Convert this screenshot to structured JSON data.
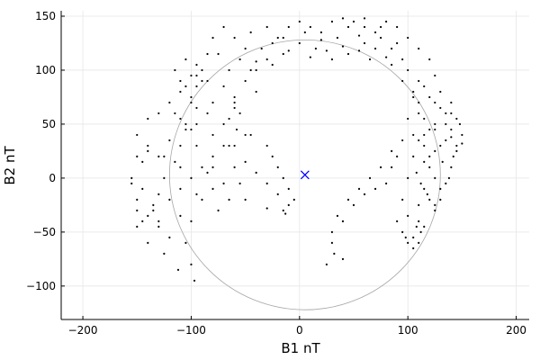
{
  "chart_data": {
    "type": "scatter",
    "xlabel": "B1 nT",
    "ylabel": "B2 nT",
    "xlim": [
      -220,
      212
    ],
    "ylim": [
      -131,
      155
    ],
    "grid": true,
    "legend": "none",
    "x_ticks": [
      -200,
      -100,
      0,
      100,
      200
    ],
    "y_ticks": [
      -100,
      -50,
      0,
      50,
      100,
      150
    ],
    "x_tick_labels": [
      "−200",
      "−100",
      "0",
      "100",
      "200"
    ],
    "y_tick_labels": [
      "−100",
      "−50",
      "0",
      "50",
      "100",
      "150"
    ],
    "colors": {
      "trace": "#000000",
      "circle": "#a6a6a6",
      "marker": "#0000ff",
      "grid": "#e6e6e6"
    },
    "reference_circle": {
      "center": [
        5,
        3
      ],
      "radius": 125
    },
    "marker": {
      "symbol": "x",
      "x": 5,
      "y": 3
    },
    "series": [
      {
        "values": [
          [
            -130,
            -40
          ],
          [
            -150,
            -20
          ],
          [
            -155,
            0
          ],
          [
            -145,
            15
          ],
          [
            -140,
            30
          ],
          [
            -150,
            20
          ],
          [
            -145,
            -10
          ],
          [
            -135,
            -30
          ],
          [
            -155,
            -5
          ],
          [
            -140,
            25
          ],
          [
            -120,
            35
          ],
          [
            -105,
            50
          ],
          [
            -110,
            30
          ],
          [
            -125,
            20
          ],
          [
            -115,
            60
          ],
          [
            -100,
            75
          ],
          [
            -95,
            65
          ],
          [
            -110,
            80
          ],
          [
            -120,
            70
          ],
          [
            -130,
            60
          ],
          [
            -140,
            55
          ],
          [
            -150,
            40
          ],
          [
            -130,
            20
          ],
          [
            -110,
            10
          ],
          [
            -100,
            0
          ],
          [
            -110,
            -10
          ],
          [
            -120,
            -20
          ],
          [
            -130,
            -15
          ],
          [
            -150,
            -30
          ],
          [
            -145,
            -40
          ],
          [
            -135,
            -25
          ],
          [
            -125,
            0
          ],
          [
            -115,
            15
          ],
          [
            -105,
            45
          ],
          [
            -95,
            85
          ],
          [
            -90,
            100
          ],
          [
            -100,
            95
          ],
          [
            -110,
            90
          ],
          [
            -115,
            100
          ],
          [
            -105,
            110
          ],
          [
            -95,
            105
          ],
          [
            -85,
            115
          ],
          [
            -80,
            130
          ],
          [
            -70,
            140
          ],
          [
            -60,
            130
          ],
          [
            -75,
            115
          ],
          [
            -90,
            90
          ],
          [
            -100,
            70
          ],
          [
            -95,
            50
          ],
          [
            -85,
            60
          ],
          [
            -80,
            40
          ],
          [
            -80,
            20
          ],
          [
            -85,
            5
          ],
          [
            -80,
            -10
          ],
          [
            -90,
            -20
          ],
          [
            -100,
            -40
          ],
          [
            -105,
            -60
          ],
          [
            -100,
            -80
          ],
          [
            -97,
            -95
          ],
          [
            -112,
            -85
          ],
          [
            -125,
            -70
          ],
          [
            -140,
            -60
          ],
          [
            -150,
            -45
          ],
          [
            -140,
            -35
          ],
          [
            -130,
            -45
          ],
          [
            -120,
            -55
          ],
          [
            -110,
            -35
          ],
          [
            -95,
            -15
          ],
          [
            -90,
            10
          ],
          [
            -95,
            30
          ],
          [
            -100,
            45
          ],
          [
            -110,
            55
          ],
          [
            -105,
            85
          ],
          [
            -95,
            95
          ],
          [
            -85,
            90
          ],
          [
            -80,
            70
          ],
          [
            -70,
            50
          ],
          [
            -65,
            30
          ],
          [
            -60,
            10
          ],
          [
            -55,
            -5
          ],
          [
            -75,
            -30
          ],
          [
            -65,
            -20
          ],
          [
            -50,
            40
          ],
          [
            -40,
            80
          ],
          [
            -30,
            110
          ],
          [
            -20,
            130
          ],
          [
            -10,
            140
          ],
          [
            0,
            145
          ],
          [
            10,
            140
          ],
          [
            20,
            135
          ],
          [
            30,
            145
          ],
          [
            40,
            148
          ],
          [
            50,
            145
          ],
          [
            60,
            140
          ],
          [
            70,
            135
          ],
          [
            80,
            145
          ],
          [
            90,
            140
          ],
          [
            100,
            130
          ],
          [
            110,
            120
          ],
          [
            120,
            110
          ],
          [
            125,
            95
          ],
          [
            130,
            80
          ],
          [
            140,
            70
          ],
          [
            145,
            55
          ],
          [
            150,
            40
          ],
          [
            145,
            25
          ],
          [
            140,
            10
          ],
          [
            135,
            -5
          ],
          [
            130,
            -20
          ],
          [
            125,
            -30
          ],
          [
            115,
            -45
          ],
          [
            105,
            -55
          ],
          [
            110,
            -40
          ],
          [
            120,
            -20
          ],
          [
            125,
            0
          ],
          [
            120,
            20
          ],
          [
            115,
            40
          ],
          [
            110,
            60
          ],
          [
            105,
            75
          ],
          [
            115,
            85
          ],
          [
            125,
            70
          ],
          [
            135,
            60
          ],
          [
            140,
            45
          ],
          [
            130,
            30
          ],
          [
            120,
            45
          ],
          [
            115,
            55
          ],
          [
            125,
            50
          ],
          [
            135,
            35
          ],
          [
            145,
            30
          ],
          [
            148,
            50
          ],
          [
            140,
            60
          ],
          [
            130,
            65
          ],
          [
            120,
            75
          ],
          [
            110,
            90
          ],
          [
            100,
            100
          ],
          [
            95,
            110
          ],
          [
            85,
            120
          ],
          [
            75,
            130
          ],
          [
            60,
            125
          ],
          [
            45,
            115
          ],
          [
            30,
            110
          ],
          [
            15,
            120
          ],
          [
            0,
            125
          ],
          [
            -15,
            115
          ],
          [
            -25,
            105
          ],
          [
            -40,
            100
          ],
          [
            -50,
            120
          ],
          [
            -45,
            135
          ],
          [
            -30,
            140
          ],
          [
            -15,
            130
          ],
          [
            5,
            135
          ],
          [
            20,
            128
          ],
          [
            35,
            130
          ],
          [
            55,
            132
          ],
          [
            70,
            120
          ],
          [
            85,
            105
          ],
          [
            95,
            90
          ],
          [
            105,
            80
          ],
          [
            110,
            70
          ],
          [
            100,
            55
          ],
          [
            105,
            40
          ],
          [
            115,
            30
          ],
          [
            120,
            10
          ],
          [
            115,
            -10
          ],
          [
            110,
            -25
          ],
          [
            100,
            -35
          ],
          [
            95,
            -20
          ],
          [
            100,
            0
          ],
          [
            105,
            20
          ],
          [
            110,
            35
          ],
          [
            125,
            45
          ],
          [
            135,
            50
          ],
          [
            140,
            38
          ],
          [
            150,
            32
          ],
          [
            142,
            20
          ],
          [
            132,
            15
          ],
          [
            125,
            25
          ],
          [
            115,
            15
          ],
          [
            108,
            5
          ],
          [
            112,
            -5
          ],
          [
            118,
            -15
          ],
          [
            125,
            -25
          ],
          [
            130,
            -10
          ],
          [
            138,
            0
          ],
          [
            -60,
            30
          ],
          [
            -50,
            15
          ],
          [
            -40,
            5
          ],
          [
            -30,
            -5
          ],
          [
            -20,
            -15
          ],
          [
            -10,
            -25
          ],
          [
            -13,
            -33
          ],
          [
            -30,
            -28
          ],
          [
            -50,
            -20
          ],
          [
            -70,
            -5
          ],
          [
            -80,
            10
          ],
          [
            -70,
            30
          ],
          [
            -65,
            55
          ],
          [
            -60,
            65
          ],
          [
            -55,
            60
          ],
          [
            -58,
            45
          ],
          [
            -45,
            40
          ],
          [
            -30,
            30
          ],
          [
            -25,
            20
          ],
          [
            -20,
            10
          ],
          [
            -15,
            0
          ],
          [
            -10,
            -10
          ],
          [
            -5,
            -20
          ],
          [
            -15,
            -30
          ],
          [
            25,
            -80
          ],
          [
            30,
            -60
          ],
          [
            40,
            -40
          ],
          [
            50,
            -25
          ],
          [
            60,
            -15
          ],
          [
            70,
            -10
          ],
          [
            80,
            -5
          ],
          [
            85,
            10
          ],
          [
            90,
            20
          ],
          [
            95,
            35
          ],
          [
            85,
            25
          ],
          [
            75,
            10
          ],
          [
            65,
            0
          ],
          [
            55,
            -10
          ],
          [
            45,
            -20
          ],
          [
            35,
            -35
          ],
          [
            30,
            -50
          ],
          [
            32,
            -70
          ],
          [
            40,
            -75
          ],
          [
            90,
            -40
          ],
          [
            95,
            -50
          ],
          [
            100,
            -60
          ],
          [
            105,
            -65
          ],
          [
            110,
            -60
          ],
          [
            112,
            -50
          ],
          [
            108,
            -45
          ],
          [
            98,
            -55
          ],
          [
            -60,
            70
          ],
          [
            -50,
            90
          ],
          [
            -45,
            100
          ],
          [
            -40,
            108
          ],
          [
            -55,
            110
          ],
          [
            -65,
            100
          ],
          [
            -70,
            85
          ],
          [
            -60,
            75
          ],
          [
            -35,
            120
          ],
          [
            -25,
            125
          ],
          [
            -10,
            118
          ],
          [
            10,
            112
          ],
          [
            25,
            118
          ],
          [
            40,
            122
          ],
          [
            55,
            118
          ],
          [
            65,
            110
          ],
          [
            80,
            112
          ],
          [
            90,
            125
          ],
          [
            75,
            140
          ],
          [
            60,
            148
          ],
          [
            45,
            140
          ]
        ]
      }
    ]
  }
}
